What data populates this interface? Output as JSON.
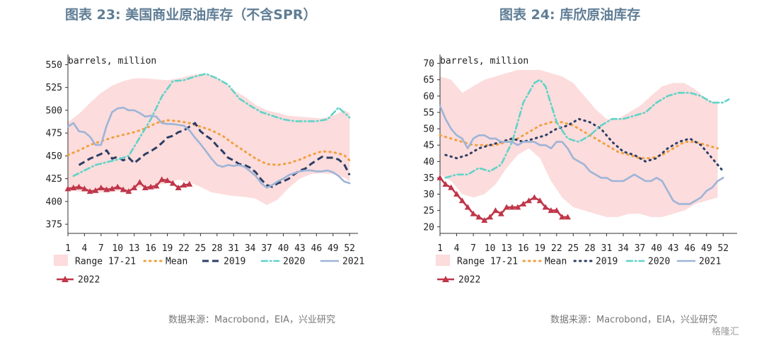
{
  "titles": {
    "left": "图表 23: 美国商业原油库存（不含SPR）",
    "right": "图表 24: 库欣原油库存"
  },
  "sources": {
    "left": "数据来源：Macrobond，EIA，兴业研究",
    "right": "数据来源：Macrobond，EIA，兴业研究"
  },
  "watermark": "格隆汇",
  "legend_labels": {
    "range": "Range 17-21",
    "mean": "Mean",
    "y2019": "2019",
    "y2020": "2020",
    "y2021": "2021",
    "y2022": "2022"
  },
  "colors": {
    "range": "#fcdcdc",
    "mean": "#f0a040",
    "y2019": "#2c3e66",
    "y2020": "#5fd3c8",
    "y2021": "#9db4d8",
    "y2022": "#c0364a",
    "title": "#5f7d95"
  },
  "chart_data": [
    {
      "type": "line",
      "title": "图表 23: 美国商业原油库存（不含SPR）",
      "unit_label": "barrels, million",
      "xlabel": "",
      "ylabel": "",
      "xlim": [
        1,
        53
      ],
      "ylim": [
        365,
        555
      ],
      "x_ticks": [
        1,
        4,
        7,
        10,
        13,
        16,
        19,
        22,
        25,
        28,
        31,
        34,
        37,
        40,
        43,
        46,
        49,
        52
      ],
      "y_ticks": [
        375,
        400,
        425,
        450,
        475,
        500,
        525,
        550
      ],
      "grid": false,
      "legend": "bottom",
      "range_band": {
        "name": "Range 17-21",
        "x": [
          1,
          3,
          5,
          7,
          9,
          11,
          13,
          15,
          17,
          19,
          21,
          23,
          25,
          27,
          29,
          31,
          33,
          35,
          37,
          39,
          41,
          43,
          45,
          47,
          49,
          51,
          52
        ],
        "upper": [
          487,
          496,
          508,
          519,
          527,
          532,
          535,
          535,
          534,
          533,
          535,
          538,
          540,
          538,
          532,
          522,
          515,
          506,
          500,
          497,
          494,
          493,
          492,
          491,
          494,
          500,
          497
        ],
        "lower": [
          412,
          411,
          410,
          410,
          411,
          412,
          414,
          416,
          418,
          420,
          424,
          421,
          416,
          410,
          408,
          406,
          405,
          403,
          396,
          402,
          415,
          425,
          430,
          431,
          430,
          426,
          422
        ]
      },
      "series": [
        {
          "name": "Mean",
          "style": "dotted",
          "x": [
            1,
            3,
            5,
            7,
            9,
            11,
            13,
            15,
            17,
            19,
            21,
            23,
            25,
            27,
            29,
            31,
            33,
            35,
            37,
            39,
            41,
            43,
            45,
            47,
            49,
            51,
            52
          ],
          "values": [
            451,
            456,
            462,
            466,
            470,
            473,
            476,
            480,
            486,
            489,
            488,
            486,
            482,
            478,
            472,
            463,
            455,
            447,
            441,
            440,
            442,
            446,
            451,
            455,
            454,
            451,
            445
          ]
        },
        {
          "name": "2019",
          "style": "dashed",
          "x": [
            3,
            5,
            7,
            8,
            9,
            10,
            11,
            12,
            13,
            14,
            15,
            16,
            17,
            18,
            19,
            20,
            21,
            22,
            23,
            24,
            25,
            26,
            27,
            28,
            29,
            30,
            31,
            32,
            33,
            34,
            35,
            36,
            37,
            38,
            39,
            40,
            41,
            42,
            43,
            44,
            45,
            46,
            47,
            48,
            49,
            50,
            51,
            52
          ],
          "values": [
            440,
            447,
            452,
            456,
            447,
            449,
            445,
            448,
            442,
            447,
            452,
            455,
            459,
            464,
            470,
            472,
            476,
            478,
            482,
            486,
            477,
            472,
            468,
            461,
            455,
            448,
            445,
            441,
            440,
            437,
            432,
            424,
            418,
            416,
            420,
            422,
            425,
            430,
            434,
            436,
            441,
            445,
            449,
            448,
            448,
            446,
            441,
            429
          ]
        },
        {
          "name": "2020",
          "style": "dashdot",
          "x": [
            2,
            4,
            6,
            8,
            10,
            12,
            14,
            16,
            18,
            20,
            22,
            24,
            26,
            28,
            30,
            32,
            34,
            36,
            38,
            40,
            42,
            44,
            46,
            48,
            50,
            52
          ],
          "values": [
            428,
            434,
            440,
            443,
            446,
            450,
            470,
            490,
            515,
            532,
            533,
            537,
            540,
            535,
            528,
            513,
            505,
            498,
            494,
            490,
            488,
            488,
            488,
            490,
            503,
            492
          ]
        },
        {
          "name": "2021",
          "style": "solid",
          "x": [
            1,
            2,
            3,
            4,
            5,
            6,
            7,
            8,
            9,
            10,
            11,
            12,
            13,
            14,
            15,
            16,
            17,
            18,
            19,
            20,
            21,
            22,
            23,
            24,
            25,
            26,
            27,
            28,
            29,
            30,
            31,
            32,
            33,
            34,
            35,
            36,
            37,
            38,
            39,
            40,
            41,
            42,
            43,
            44,
            45,
            46,
            47,
            48,
            49,
            50,
            51,
            52
          ],
          "values": [
            482,
            486,
            477,
            476,
            471,
            462,
            462,
            483,
            498,
            502,
            503,
            500,
            500,
            497,
            493,
            494,
            493,
            486,
            485,
            485,
            484,
            483,
            478,
            470,
            463,
            455,
            447,
            440,
            438,
            440,
            439,
            440,
            438,
            433,
            428,
            420,
            415,
            418,
            422,
            425,
            429,
            431,
            433,
            434,
            434,
            433,
            433,
            434,
            432,
            428,
            422,
            420
          ]
        },
        {
          "name": "2022",
          "style": "solid-triangle",
          "x": [
            1,
            2,
            3,
            4,
            5,
            6,
            7,
            8,
            9,
            10,
            11,
            12,
            13,
            14,
            15,
            16,
            17,
            18,
            19,
            20,
            21,
            22,
            23
          ],
          "values": [
            414,
            415,
            416,
            414,
            411,
            412,
            415,
            413,
            414,
            416,
            413,
            411,
            415,
            421,
            415,
            416,
            417,
            424,
            423,
            420,
            415,
            418,
            419
          ]
        }
      ]
    },
    {
      "type": "line",
      "title": "图表 24: 库欣原油库存",
      "unit_label": "barrels, million",
      "xlabel": "",
      "ylabel": "",
      "xlim": [
        1,
        54
      ],
      "ylim": [
        18,
        71
      ],
      "x_ticks": [
        1,
        4,
        7,
        10,
        13,
        16,
        19,
        22,
        25,
        28,
        31,
        34,
        37,
        40,
        43,
        46,
        49,
        52
      ],
      "y_ticks": [
        20,
        25,
        30,
        35,
        40,
        45,
        50,
        55,
        60,
        65,
        70
      ],
      "grid": false,
      "legend": "bottom",
      "range_band": {
        "name": "Range 17-21",
        "x": [
          1,
          3,
          5,
          7,
          9,
          11,
          13,
          15,
          17,
          19,
          21,
          23,
          25,
          27,
          29,
          31,
          33,
          35,
          37,
          39,
          41,
          43,
          45,
          47,
          49,
          51
        ],
        "upper": [
          66,
          65,
          61,
          63,
          65,
          66,
          67,
          68,
          68,
          68,
          67,
          66,
          64,
          60,
          56,
          53,
          53,
          55,
          57,
          60,
          63,
          64,
          64,
          62,
          59,
          58
        ],
        "lower": [
          36,
          34,
          30,
          29,
          30,
          33,
          38,
          42,
          44,
          41,
          34,
          29,
          26,
          25,
          24,
          23,
          23,
          24,
          24,
          23,
          23,
          24,
          25,
          27,
          28,
          29
        ]
      },
      "series": [
        {
          "name": "Mean",
          "style": "dotted",
          "x": [
            1,
            3,
            5,
            7,
            9,
            11,
            13,
            15,
            17,
            19,
            21,
            23,
            25,
            27,
            29,
            31,
            33,
            35,
            37,
            39,
            41,
            43,
            45,
            47,
            49,
            51
          ],
          "values": [
            48,
            47,
            46,
            45,
            45,
            45,
            46,
            47,
            49,
            51,
            52,
            52,
            51,
            49,
            47,
            45,
            43,
            42,
            41,
            41,
            42,
            44,
            46,
            46,
            45,
            44
          ]
        },
        {
          "name": "2019",
          "style": "dotted",
          "x": [
            2,
            4,
            6,
            8,
            10,
            12,
            14,
            16,
            18,
            20,
            22,
            24,
            26,
            28,
            30,
            32,
            34,
            36,
            38,
            40,
            42,
            44,
            46,
            48,
            50,
            52
          ],
          "values": [
            42,
            41,
            42,
            44,
            45,
            46,
            47,
            46,
            47,
            48,
            50,
            51,
            53,
            52,
            50,
            46,
            43,
            42,
            40,
            41,
            44,
            46,
            47,
            45,
            41,
            37
          ]
        },
        {
          "name": "2020",
          "style": "dashdot",
          "x": [
            2,
            4,
            6,
            8,
            10,
            12,
            14,
            16,
            18,
            19,
            20,
            22,
            24,
            26,
            28,
            30,
            32,
            34,
            36,
            38,
            40,
            42,
            44,
            46,
            48,
            50,
            52,
            53
          ],
          "values": [
            35,
            36,
            36,
            38,
            37,
            39,
            46,
            58,
            64,
            65,
            63,
            52,
            47,
            46,
            48,
            51,
            53,
            53,
            54,
            55,
            58,
            60,
            61,
            61,
            60,
            58,
            58,
            59
          ]
        },
        {
          "name": "2021",
          "style": "solid",
          "x": [
            1,
            2,
            3,
            4,
            5,
            6,
            7,
            8,
            9,
            10,
            11,
            12,
            13,
            14,
            15,
            16,
            17,
            18,
            19,
            20,
            21,
            22,
            23,
            24,
            25,
            26,
            27,
            28,
            29,
            30,
            31,
            32,
            33,
            34,
            35,
            36,
            37,
            38,
            39,
            40,
            41,
            42,
            43,
            44,
            45,
            46,
            47,
            48,
            49,
            50,
            51,
            52
          ],
          "values": [
            57,
            53,
            50,
            48,
            47,
            44,
            47,
            48,
            48,
            47,
            47,
            46,
            46,
            46,
            45,
            46,
            46,
            46,
            45,
            45,
            44,
            46,
            46,
            44,
            41,
            40,
            39,
            37,
            36,
            35,
            35,
            34,
            34,
            34,
            35,
            36,
            35,
            34,
            34,
            35,
            34,
            31,
            28,
            27,
            27,
            27,
            28,
            29,
            31,
            32,
            34,
            35
          ]
        },
        {
          "name": "2022",
          "style": "solid-triangle",
          "x": [
            1,
            2,
            3,
            4,
            5,
            6,
            7,
            8,
            9,
            10,
            11,
            12,
            13,
            14,
            15,
            16,
            17,
            18,
            19,
            20,
            21,
            22,
            23,
            24
          ],
          "values": [
            35,
            33,
            32,
            30,
            28,
            26,
            24,
            23,
            22,
            23,
            25,
            24,
            26,
            26,
            26,
            27,
            28,
            29,
            28,
            26,
            25,
            25,
            23,
            23
          ]
        }
      ]
    }
  ]
}
